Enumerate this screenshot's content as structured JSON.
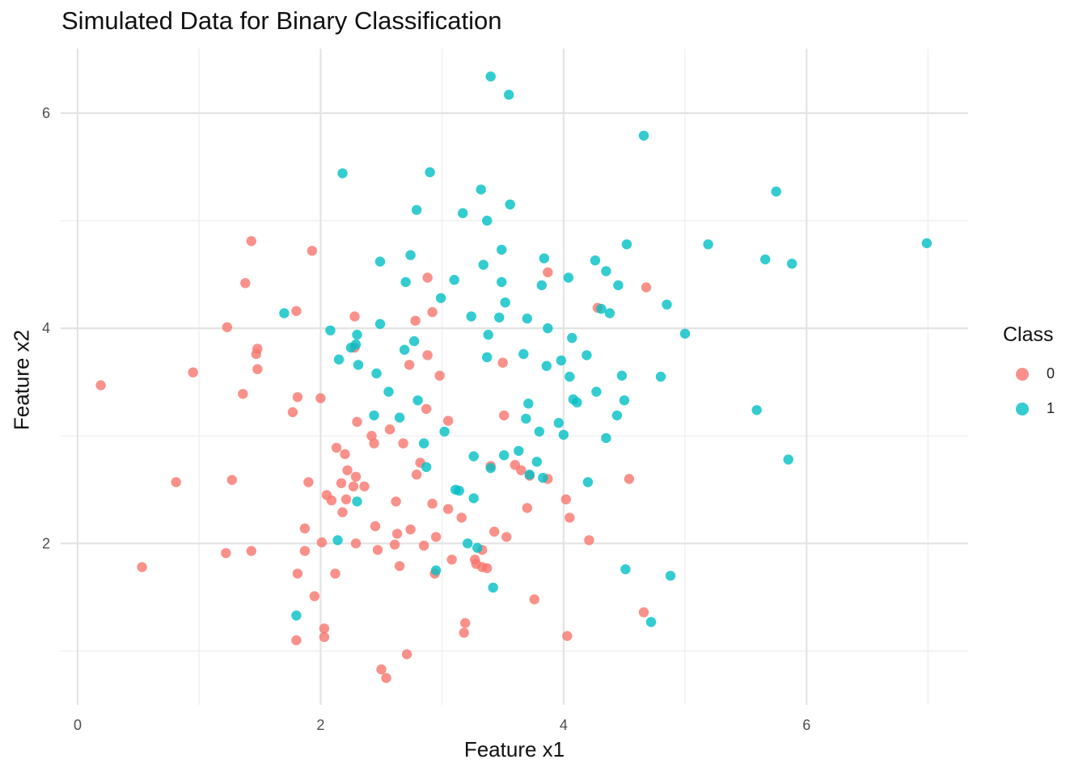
{
  "chart_data": {
    "type": "scatter",
    "title": "Simulated Data for Binary Classification",
    "xlabel": "Feature x1",
    "ylabel": "Feature x2",
    "xlim": [
      -0.14,
      7.33
    ],
    "ylim": [
      0.5,
      6.6
    ],
    "xticks": [
      0,
      2,
      4,
      6
    ],
    "yticks": [
      2,
      4,
      6
    ],
    "grid": true,
    "legend": {
      "title": "Class",
      "position": "right"
    },
    "series": [
      {
        "name": "0",
        "color": "#F8766D",
        "x": [
          0.19,
          0.53,
          0.81,
          0.95,
          1.22,
          1.23,
          1.27,
          1.36,
          1.38,
          1.43,
          1.43,
          1.47,
          1.48,
          1.48,
          1.77,
          1.8,
          1.81,
          1.81,
          1.8,
          1.87,
          1.87,
          1.9,
          1.93,
          1.95,
          2.01,
          2.0,
          2.03,
          2.03,
          2.05,
          2.09,
          2.12,
          2.13,
          2.17,
          2.18,
          2.2,
          2.21,
          2.22,
          2.27,
          2.28,
          2.28,
          2.29,
          2.3,
          2.29,
          2.36,
          2.42,
          2.44,
          2.45,
          2.47,
          2.5,
          2.54,
          2.57,
          2.61,
          2.62,
          2.63,
          2.65,
          2.68,
          2.71,
          2.73,
          2.74,
          2.78,
          2.79,
          2.82,
          2.85,
          2.87,
          2.88,
          2.88,
          2.92,
          2.92,
          2.94,
          2.95,
          2.98,
          3.05,
          3.05,
          3.08,
          3.16,
          3.18,
          3.19,
          3.27,
          3.28,
          3.33,
          3.33,
          3.37,
          3.4,
          3.43,
          3.5,
          3.51,
          3.53,
          3.6,
          3.65,
          3.7,
          3.72,
          3.76,
          3.87,
          3.87,
          4.02,
          4.03,
          4.05,
          4.21,
          4.28,
          4.54,
          4.66,
          4.68
        ],
        "y": [
          3.47,
          1.78,
          2.57,
          3.59,
          1.91,
          4.01,
          2.59,
          3.39,
          4.42,
          1.93,
          4.81,
          3.76,
          3.62,
          3.81,
          3.22,
          4.16,
          1.72,
          3.36,
          1.1,
          2.14,
          1.93,
          2.57,
          4.72,
          1.51,
          2.01,
          3.35,
          1.21,
          1.13,
          2.45,
          2.4,
          1.72,
          2.89,
          2.56,
          2.29,
          2.83,
          2.41,
          2.68,
          2.53,
          3.82,
          4.11,
          2.62,
          3.13,
          2.0,
          2.53,
          3.0,
          2.93,
          2.16,
          1.94,
          0.83,
          0.75,
          3.06,
          1.99,
          2.39,
          2.09,
          1.79,
          2.93,
          0.97,
          3.66,
          2.13,
          4.07,
          2.64,
          2.75,
          1.98,
          3.25,
          3.75,
          4.47,
          4.15,
          2.37,
          1.72,
          2.06,
          3.56,
          2.32,
          3.14,
          1.85,
          2.24,
          1.17,
          1.26,
          1.85,
          1.81,
          1.78,
          1.94,
          1.77,
          2.72,
          2.11,
          3.68,
          3.19,
          2.06,
          2.73,
          2.68,
          2.33,
          2.63,
          1.48,
          4.52,
          2.6,
          2.41,
          1.14,
          2.24,
          2.03,
          4.19,
          2.6,
          1.36,
          4.38
        ]
      },
      {
        "name": "1",
        "color": "#00BFC4",
        "x": [
          1.7,
          1.8,
          2.08,
          2.14,
          2.15,
          2.18,
          2.25,
          2.29,
          2.3,
          2.31,
          2.3,
          2.44,
          2.46,
          2.49,
          2.49,
          2.56,
          2.65,
          2.69,
          2.7,
          2.74,
          2.77,
          2.79,
          2.8,
          2.85,
          2.87,
          2.9,
          2.95,
          2.99,
          3.02,
          3.1,
          3.11,
          3.14,
          3.17,
          3.21,
          3.24,
          3.26,
          3.26,
          3.29,
          3.32,
          3.34,
          3.37,
          3.37,
          3.38,
          3.4,
          3.4,
          3.42,
          3.47,
          3.49,
          3.49,
          3.51,
          3.52,
          3.55,
          3.56,
          3.63,
          3.67,
          3.69,
          3.7,
          3.71,
          3.72,
          3.78,
          3.8,
          3.82,
          3.83,
          3.84,
          3.86,
          3.87,
          3.96,
          3.98,
          4.0,
          4.04,
          4.05,
          4.07,
          4.08,
          4.11,
          4.19,
          4.2,
          4.26,
          4.27,
          4.31,
          4.35,
          4.35,
          4.38,
          4.44,
          4.45,
          4.48,
          4.5,
          4.52,
          4.51,
          4.66,
          4.72,
          4.8,
          4.85,
          4.88,
          5.0,
          5.19,
          5.59,
          5.66,
          5.75,
          5.85,
          5.88,
          6.99
        ],
        "y": [
          4.14,
          1.33,
          3.98,
          2.03,
          3.71,
          5.44,
          3.82,
          3.85,
          2.39,
          3.66,
          3.94,
          3.19,
          3.58,
          4.04,
          4.62,
          3.41,
          3.17,
          3.8,
          4.43,
          4.68,
          3.88,
          5.1,
          3.33,
          2.93,
          2.71,
          5.45,
          1.75,
          4.28,
          3.04,
          4.45,
          2.5,
          2.49,
          5.07,
          2.0,
          4.11,
          2.42,
          2.81,
          1.96,
          5.29,
          4.59,
          3.73,
          5.0,
          3.94,
          2.7,
          6.34,
          1.59,
          4.1,
          4.73,
          4.43,
          2.82,
          4.24,
          6.17,
          5.15,
          2.86,
          3.76,
          3.16,
          4.09,
          3.3,
          2.64,
          2.76,
          3.04,
          4.4,
          2.61,
          4.65,
          3.65,
          4.0,
          3.12,
          3.7,
          3.01,
          4.47,
          3.55,
          3.91,
          3.34,
          3.31,
          3.75,
          2.57,
          4.63,
          3.41,
          4.18,
          4.53,
          2.98,
          4.14,
          3.19,
          4.4,
          3.56,
          3.33,
          4.78,
          1.76,
          5.79,
          1.27,
          3.55,
          4.22,
          1.7,
          3.95,
          4.78,
          3.24,
          4.64,
          5.27,
          2.78,
          4.6,
          4.79
        ]
      }
    ]
  }
}
